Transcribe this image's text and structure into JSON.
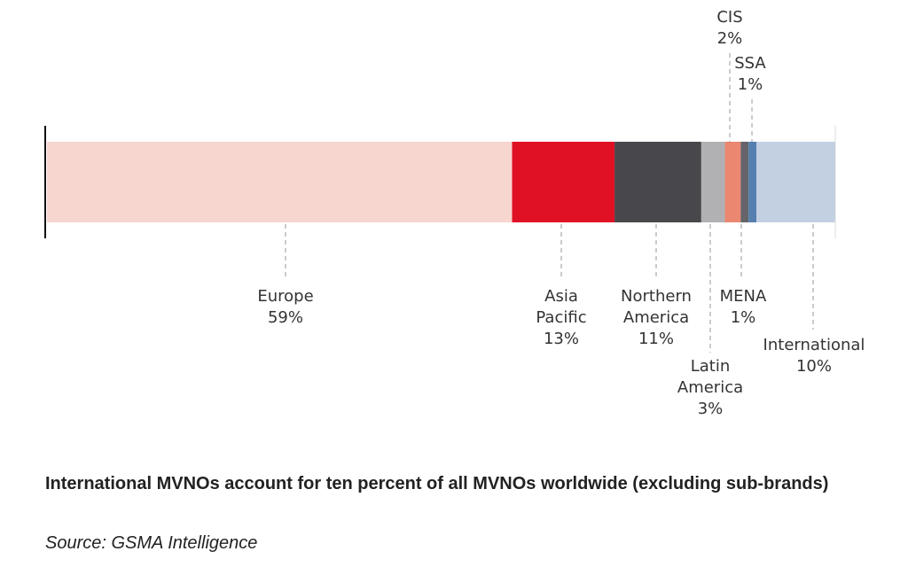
{
  "chart_data": {
    "type": "bar",
    "stacked": true,
    "orientation": "horizontal",
    "unit": "%",
    "segments": [
      {
        "name": "Europe",
        "value": 59,
        "label": "59%",
        "color": "#F7D6CF"
      },
      {
        "name": "Asia Pacific",
        "value": 13,
        "label": "13%",
        "color": "#E01025"
      },
      {
        "name": "Northern America",
        "value": 11,
        "label": "11%",
        "color": "#48474B"
      },
      {
        "name": "Latin America",
        "value": 3,
        "label": "3%",
        "color": "#B1B1B3"
      },
      {
        "name": "CIS",
        "value": 2,
        "label": "2%",
        "color": "#EB8670"
      },
      {
        "name": "MENA",
        "value": 1,
        "label": "1%",
        "color": "#646469"
      },
      {
        "name": "SSA",
        "value": 1,
        "label": "1%",
        "color": "#557FAF"
      },
      {
        "name": "International",
        "value": 10,
        "label": "10%",
        "color": "#C2D0E2"
      }
    ],
    "label_positions": {
      "Europe": "below",
      "Asia Pacific": "below",
      "Northern America": "below",
      "Latin America": "below",
      "CIS": "above",
      "MENA": "below",
      "SSA": "above",
      "International": "below"
    },
    "grid": false,
    "legend": "none"
  },
  "caption": "International MVNOs account for ten percent of all MVNOs worldwide (excluding sub-brands)",
  "source": "Source: GSMA Intelligence"
}
